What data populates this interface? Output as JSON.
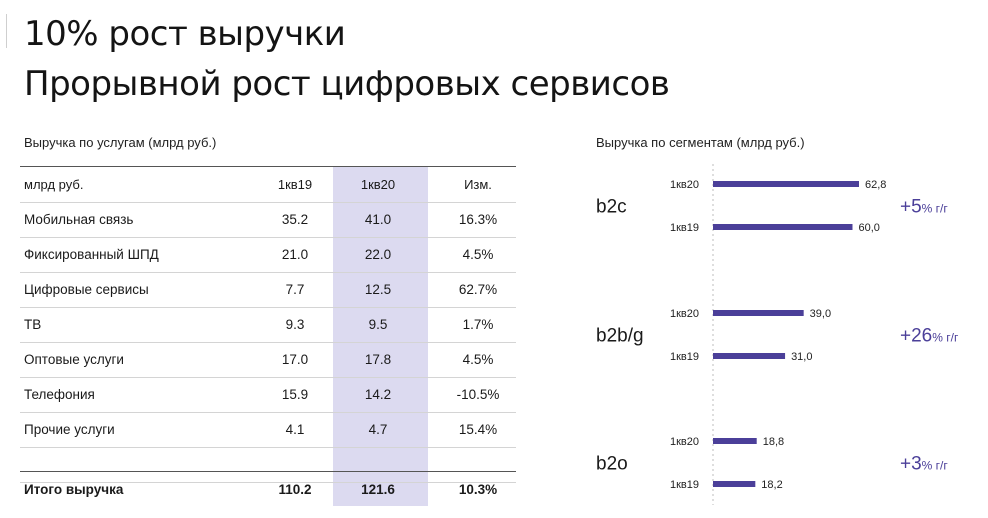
{
  "titles": {
    "line1": "10% рост выручки",
    "line2": "Прорывной рост цифровых сервисов"
  },
  "table": {
    "caption": "Выручка по услугам (млрд руб.)",
    "header": [
      "млрд руб.",
      "1кв19",
      "1кв20",
      "Изм."
    ],
    "rows": [
      [
        "Мобильная связь",
        "35.2",
        "41.0",
        "16.3%"
      ],
      [
        "Фиксированный ШПД",
        "21.0",
        "22.0",
        "4.5%"
      ],
      [
        "Цифровые сервисы",
        "7.7",
        "12.5",
        "62.7%"
      ],
      [
        "ТВ",
        "9.3",
        "9.5",
        "1.7%"
      ],
      [
        "Оптовые услуги",
        "17.0",
        "17.8",
        "4.5%"
      ],
      [
        "Телефония",
        "15.9",
        "14.2",
        "-10.5%"
      ],
      [
        "Прочие услуги",
        "4.1",
        "4.7",
        "15.4%"
      ]
    ],
    "total": [
      "Итого выручка",
      "110.2",
      "121.6",
      "10.3%"
    ]
  },
  "chart_data": {
    "type": "bar",
    "orientation": "horizontal",
    "title": "Выручка по сегментам (млрд руб.)",
    "series_labels": [
      "1кв20",
      "1кв19"
    ],
    "color": "#4b3f99",
    "segments": [
      {
        "name": "b2c",
        "values": [
          {
            "period": "1кв20",
            "value": 62.8,
            "label": "62,8"
          },
          {
            "period": "1кв19",
            "value": 60.0,
            "label": "60,0"
          }
        ],
        "growth_big": "+5",
        "growth_small": "% г/г"
      },
      {
        "name": "b2b/g",
        "values": [
          {
            "period": "1кв20",
            "value": 39.0,
            "label": "39,0"
          },
          {
            "period": "1кв19",
            "value": 31.0,
            "label": "31,0"
          }
        ],
        "growth_big": "+26",
        "growth_small": "% г/г"
      },
      {
        "name": "b2o",
        "values": [
          {
            "period": "1кв20",
            "value": 18.8,
            "label": "18,8"
          },
          {
            "period": "1кв19",
            "value": 18.2,
            "label": "18,2"
          }
        ],
        "growth_big": "+3",
        "growth_small": "% г/г"
      }
    ],
    "xlim": [
      0,
      62.8
    ]
  }
}
